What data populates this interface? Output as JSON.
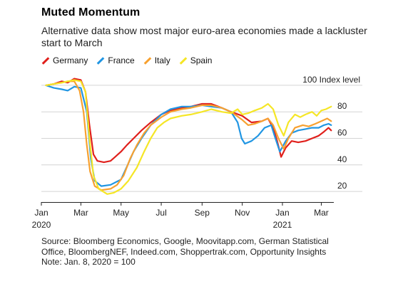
{
  "title": "Muted Momentum",
  "subtitle": "Alternative data show most major euro-area economies made a lackluster start to March",
  "footer": {
    "source_line_1": "Source: Bloomberg Economics, Google, Moovitapp.com, German Statistical",
    "source_line_2": "Office, BloombergNEF, Indeed.com, Shoppertrak.com, Opportunity Insights",
    "note": "Note: Jan. 8, 2020 = 100"
  },
  "chart_data": {
    "type": "line",
    "title": "Muted Momentum",
    "ylabel": "Index level",
    "y_top_label": "100 Index level",
    "ylim": [
      12,
      108
    ],
    "yticks": [
      20,
      40,
      60,
      80,
      100
    ],
    "xlim": [
      "2020-01-01",
      "2021-03-20"
    ],
    "xticks": [
      {
        "date": "2020-01-01",
        "label": "Jan",
        "year": "2020"
      },
      {
        "date": "2020-03-01",
        "label": "Mar"
      },
      {
        "date": "2020-05-01",
        "label": "May"
      },
      {
        "date": "2020-07-01",
        "label": "Jul"
      },
      {
        "date": "2020-09-01",
        "label": "Sep"
      },
      {
        "date": "2020-11-01",
        "label": "Nov"
      },
      {
        "date": "2021-01-01",
        "label": "Jan",
        "year": "2021"
      },
      {
        "date": "2021-03-01",
        "label": "Mar"
      }
    ],
    "grid": true,
    "legend_position": "top-left",
    "series": [
      {
        "name": "Germany",
        "color": "#e0201c",
        "points": [
          [
            "2020-01-08",
            100
          ],
          [
            "2020-01-20",
            101
          ],
          [
            "2020-02-01",
            103
          ],
          [
            "2020-02-10",
            102
          ],
          [
            "2020-02-20",
            105
          ],
          [
            "2020-03-01",
            104
          ],
          [
            "2020-03-08",
            95
          ],
          [
            "2020-03-14",
            70
          ],
          [
            "2020-03-20",
            48
          ],
          [
            "2020-03-26",
            43
          ],
          [
            "2020-04-05",
            42
          ],
          [
            "2020-04-15",
            43
          ],
          [
            "2020-04-22",
            46
          ],
          [
            "2020-05-01",
            50
          ],
          [
            "2020-05-10",
            55
          ],
          [
            "2020-05-20",
            60
          ],
          [
            "2020-06-01",
            66
          ],
          [
            "2020-06-15",
            72
          ],
          [
            "2020-07-01",
            78
          ],
          [
            "2020-07-15",
            81
          ],
          [
            "2020-08-01",
            83
          ],
          [
            "2020-08-15",
            84
          ],
          [
            "2020-09-01",
            86
          ],
          [
            "2020-09-15",
            86
          ],
          [
            "2020-10-01",
            83
          ],
          [
            "2020-10-15",
            80
          ],
          [
            "2020-11-01",
            77
          ],
          [
            "2020-11-15",
            72
          ],
          [
            "2020-12-01",
            73
          ],
          [
            "2020-12-10",
            75
          ],
          [
            "2020-12-18",
            68
          ],
          [
            "2020-12-24",
            58
          ],
          [
            "2020-12-30",
            46
          ],
          [
            "2021-01-06",
            53
          ],
          [
            "2021-01-15",
            58
          ],
          [
            "2021-01-25",
            57
          ],
          [
            "2021-02-05",
            58
          ],
          [
            "2021-02-15",
            60
          ],
          [
            "2021-02-25",
            62
          ],
          [
            "2021-03-05",
            65
          ],
          [
            "2021-03-12",
            68
          ],
          [
            "2021-03-16",
            66
          ]
        ]
      },
      {
        "name": "France",
        "color": "#2196e3",
        "points": [
          [
            "2020-01-08",
            100
          ],
          [
            "2020-01-20",
            98
          ],
          [
            "2020-02-01",
            97
          ],
          [
            "2020-02-10",
            96
          ],
          [
            "2020-02-20",
            99
          ],
          [
            "2020-03-01",
            98
          ],
          [
            "2020-03-10",
            80
          ],
          [
            "2020-03-16",
            45
          ],
          [
            "2020-03-22",
            28
          ],
          [
            "2020-04-01",
            24
          ],
          [
            "2020-04-15",
            25
          ],
          [
            "2020-05-01",
            29
          ],
          [
            "2020-05-11",
            40
          ],
          [
            "2020-05-20",
            50
          ],
          [
            "2020-06-01",
            60
          ],
          [
            "2020-06-15",
            70
          ],
          [
            "2020-07-01",
            78
          ],
          [
            "2020-07-15",
            82
          ],
          [
            "2020-08-01",
            84
          ],
          [
            "2020-08-15",
            84
          ],
          [
            "2020-09-01",
            85
          ],
          [
            "2020-09-15",
            84
          ],
          [
            "2020-10-01",
            83
          ],
          [
            "2020-10-15",
            80
          ],
          [
            "2020-10-25",
            72
          ],
          [
            "2020-10-31",
            60
          ],
          [
            "2020-11-05",
            56
          ],
          [
            "2020-11-15",
            58
          ],
          [
            "2020-11-25",
            62
          ],
          [
            "2020-12-05",
            68
          ],
          [
            "2020-12-15",
            70
          ],
          [
            "2020-12-20",
            62
          ],
          [
            "2020-12-28",
            50
          ],
          [
            "2021-01-06",
            58
          ],
          [
            "2021-01-15",
            64
          ],
          [
            "2021-01-25",
            66
          ],
          [
            "2021-02-05",
            67
          ],
          [
            "2021-02-15",
            68
          ],
          [
            "2021-02-25",
            68
          ],
          [
            "2021-03-05",
            70
          ],
          [
            "2021-03-12",
            71
          ],
          [
            "2021-03-16",
            70
          ]
        ]
      },
      {
        "name": "Italy",
        "color": "#f7a130",
        "points": [
          [
            "2020-01-08",
            100
          ],
          [
            "2020-01-20",
            101
          ],
          [
            "2020-02-01",
            102
          ],
          [
            "2020-02-10",
            103
          ],
          [
            "2020-02-20",
            103
          ],
          [
            "2020-02-28",
            96
          ],
          [
            "2020-03-05",
            80
          ],
          [
            "2020-03-10",
            55
          ],
          [
            "2020-03-15",
            35
          ],
          [
            "2020-03-22",
            24
          ],
          [
            "2020-04-01",
            21
          ],
          [
            "2020-04-15",
            22
          ],
          [
            "2020-04-25",
            25
          ],
          [
            "2020-05-05",
            32
          ],
          [
            "2020-05-15",
            45
          ],
          [
            "2020-05-25",
            55
          ],
          [
            "2020-06-05",
            64
          ],
          [
            "2020-06-15",
            70
          ],
          [
            "2020-07-01",
            76
          ],
          [
            "2020-07-15",
            80
          ],
          [
            "2020-08-01",
            82
          ],
          [
            "2020-08-15",
            83
          ],
          [
            "2020-09-01",
            85
          ],
          [
            "2020-09-15",
            85
          ],
          [
            "2020-10-01",
            83
          ],
          [
            "2020-10-15",
            80
          ],
          [
            "2020-11-01",
            74
          ],
          [
            "2020-11-10",
            70
          ],
          [
            "2020-11-20",
            71
          ],
          [
            "2020-12-01",
            73
          ],
          [
            "2020-12-10",
            75
          ],
          [
            "2020-12-18",
            70
          ],
          [
            "2020-12-26",
            60
          ],
          [
            "2021-01-03",
            52
          ],
          [
            "2021-01-10",
            60
          ],
          [
            "2021-01-20",
            68
          ],
          [
            "2021-02-01",
            70
          ],
          [
            "2021-02-10",
            69
          ],
          [
            "2021-02-20",
            71
          ],
          [
            "2021-03-01",
            73
          ],
          [
            "2021-03-10",
            75
          ],
          [
            "2021-03-16",
            73
          ]
        ]
      },
      {
        "name": "Spain",
        "color": "#f5e626",
        "points": [
          [
            "2020-01-08",
            100
          ],
          [
            "2020-01-20",
            101
          ],
          [
            "2020-02-01",
            102
          ],
          [
            "2020-02-10",
            103
          ],
          [
            "2020-02-20",
            104
          ],
          [
            "2020-03-01",
            103
          ],
          [
            "2020-03-08",
            95
          ],
          [
            "2020-03-14",
            60
          ],
          [
            "2020-03-20",
            32
          ],
          [
            "2020-03-28",
            22
          ],
          [
            "2020-04-10",
            18
          ],
          [
            "2020-04-20",
            19
          ],
          [
            "2020-05-01",
            22
          ],
          [
            "2020-05-12",
            28
          ],
          [
            "2020-05-25",
            38
          ],
          [
            "2020-06-05",
            50
          ],
          [
            "2020-06-15",
            60
          ],
          [
            "2020-06-25",
            68
          ],
          [
            "2020-07-05",
            72
          ],
          [
            "2020-07-15",
            75
          ],
          [
            "2020-08-01",
            77
          ],
          [
            "2020-08-15",
            78
          ],
          [
            "2020-09-01",
            80
          ],
          [
            "2020-09-15",
            82
          ],
          [
            "2020-10-01",
            80
          ],
          [
            "2020-10-15",
            79
          ],
          [
            "2020-10-25",
            82
          ],
          [
            "2020-11-01",
            78
          ],
          [
            "2020-11-10",
            79
          ],
          [
            "2020-11-20",
            81
          ],
          [
            "2020-12-01",
            83
          ],
          [
            "2020-12-10",
            86
          ],
          [
            "2020-12-18",
            82
          ],
          [
            "2020-12-26",
            70
          ],
          [
            "2021-01-03",
            62
          ],
          [
            "2021-01-10",
            72
          ],
          [
            "2021-01-20",
            78
          ],
          [
            "2021-01-28",
            76
          ],
          [
            "2021-02-05",
            78
          ],
          [
            "2021-02-15",
            80
          ],
          [
            "2021-02-22",
            77
          ],
          [
            "2021-03-01",
            81
          ],
          [
            "2021-03-08",
            82
          ],
          [
            "2021-03-16",
            84
          ]
        ]
      }
    ]
  }
}
